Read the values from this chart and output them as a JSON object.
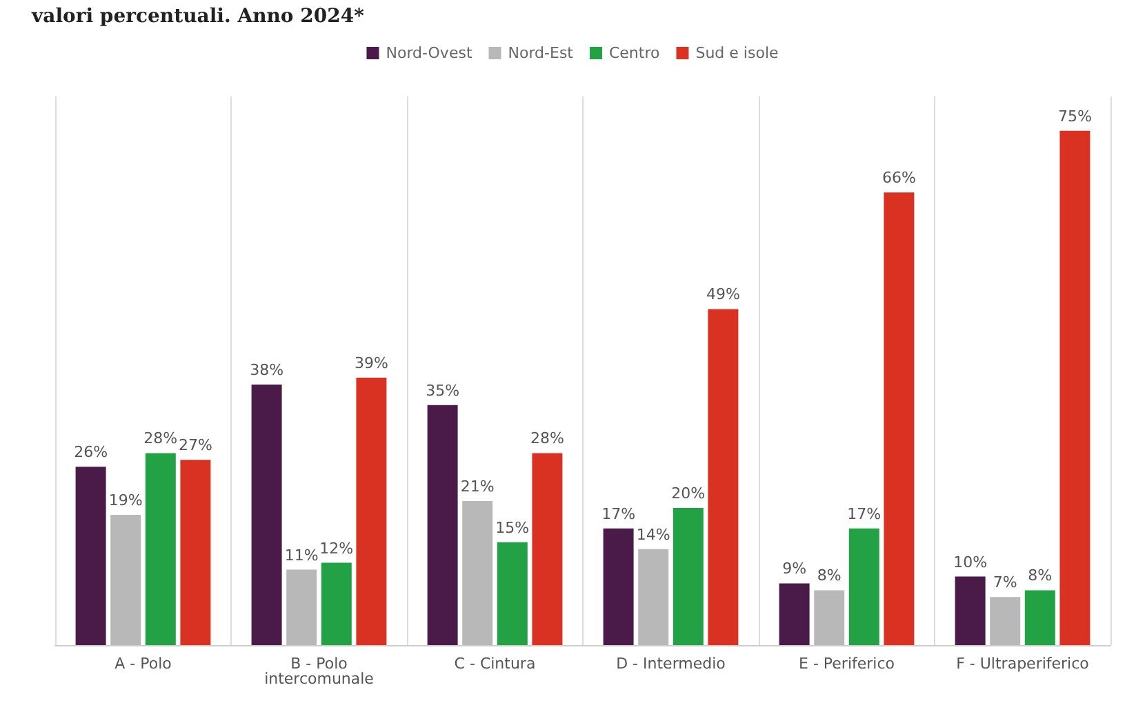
{
  "chart_data": {
    "type": "bar",
    "title": "valori percentuali. Anno 2024*",
    "categories": [
      "A - Polo",
      "B - Polo\nintercomunale",
      "C - Cintura",
      "D - Intermedio",
      "E - Periferico",
      "F - Ultraperiferico"
    ],
    "series": [
      {
        "name": "Nord-Ovest",
        "color": "#4a1a48",
        "values": [
          26,
          38,
          35,
          17,
          9,
          10
        ],
        "value_labels": [
          "26%",
          "38%",
          "35%",
          "17%",
          "9%",
          "10%"
        ]
      },
      {
        "name": "Nord-Est",
        "color": "#b8b8b8",
        "values": [
          19,
          11,
          21,
          14,
          8,
          7
        ],
        "value_labels": [
          "19%",
          "11%",
          "21%",
          "14%",
          "8%",
          "7%"
        ]
      },
      {
        "name": "Centro",
        "color": "#22a244",
        "values": [
          28,
          12,
          15,
          20,
          17,
          8
        ],
        "value_labels": [
          "28%",
          "12%",
          "15%",
          "20%",
          "17%",
          "8%"
        ]
      },
      {
        "name": "Sud e isole",
        "color": "#d93222",
        "values": [
          27,
          39,
          28,
          49,
          66,
          75
        ],
        "value_labels": [
          "27%",
          "39%",
          "28%",
          "49%",
          "66%",
          "75%"
        ]
      }
    ],
    "grid": "x",
    "legend": "top"
  }
}
